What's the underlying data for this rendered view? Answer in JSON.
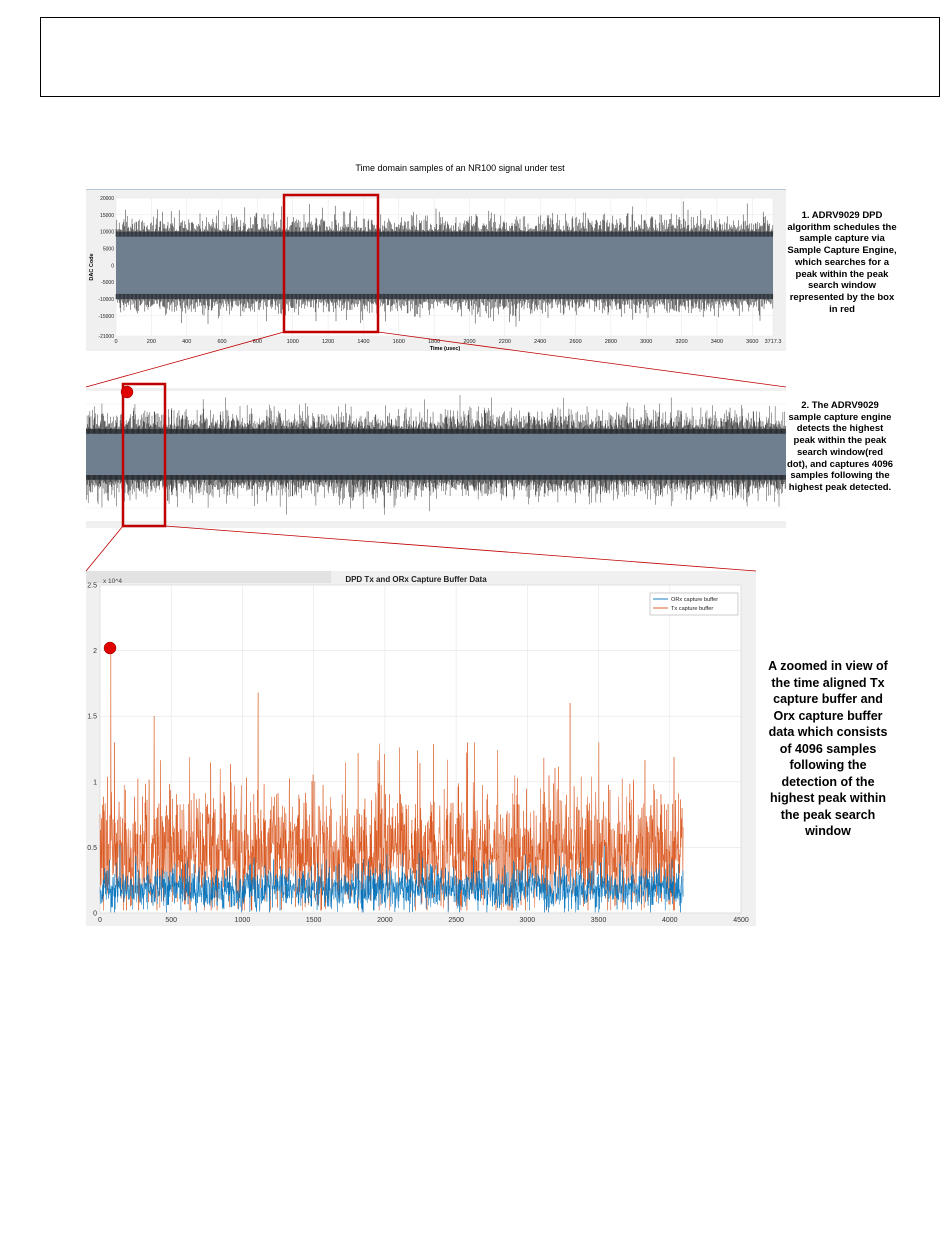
{
  "figure_title": "Time domain samples of an NR100 signal under test",
  "notes": {
    "step1": "1. ADRV9029 DPD algorithm schedules the sample capture via Sample Capture Engine, which searches for a peak within the peak search window represented by the box in red",
    "step2": "2. The ADRV9029 sample capture engine detects the highest peak within the peak search window(red dot), and captures 4096 samples following the highest peak detected.",
    "step3": "A zoomed in view of the time aligned Tx capture buffer and Orx capture buffer data which consists of 4096 samples following the detection of the highest peak within the peak search window"
  },
  "colors": {
    "signal_fill": "#707f8f",
    "signal_spikes": "#111111",
    "highlight": "#c00000",
    "orx": "#0072bd",
    "tx": "#d95319",
    "panel_bg": "#f0f0f0"
  },
  "chart_data": [
    {
      "type": "area",
      "xlabel": "Time (usec)",
      "ylabel": "DAC Code",
      "xlim": [
        0,
        3717.3
      ],
      "ylim": [
        -21000,
        20000
      ],
      "x_ticks": [
        "0",
        "200",
        "400",
        "600",
        "800",
        "1000",
        "1200",
        "1400",
        "1600",
        "1800",
        "2000",
        "2200",
        "2400",
        "2600",
        "2800",
        "3000",
        "3200",
        "3400",
        "3600",
        "3717.3"
      ],
      "y_ticks": [
        "20000",
        "15000",
        "10000",
        "5000",
        "0",
        "-5000",
        "-10000",
        "-15000",
        "-21000"
      ],
      "envelope": {
        "rms_fill": [
          -10000,
          10000
        ],
        "typical_peak": 15000,
        "max_peak": 19000
      },
      "peak_search_window": [
        940,
        1480
      ],
      "grid": true
    },
    {
      "type": "area",
      "title": "",
      "xlim": [
        940,
        1480
      ],
      "envelope": {
        "rms_fill": [
          -10000,
          10000
        ],
        "typical_peak": 15000,
        "max_peak": 19000
      },
      "highest_peak_marker": {
        "x": 963,
        "y": 19000
      },
      "capture_window": [
        960,
        1000
      ]
    },
    {
      "type": "line",
      "title": "DPD Tx and ORx Capture Buffer Data",
      "y_exponent": "x 10^4",
      "xlim": [
        0,
        4500
      ],
      "ylim": [
        0,
        2.5
      ],
      "x_ticks": [
        "0",
        "500",
        "1000",
        "1500",
        "2000",
        "2500",
        "3000",
        "3500",
        "4000",
        "4500"
      ],
      "y_ticks": [
        "0",
        "0.5",
        "1",
        "1.5",
        "2",
        "2.5"
      ],
      "grid": true,
      "legend_position": "top-right",
      "series": [
        {
          "name": "ORx capture buffer",
          "color": "#0072bd",
          "length": 4096,
          "typical_range": [
            0.0,
            0.4
          ],
          "max": 0.55
        },
        {
          "name": "Tx capture buffer",
          "color": "#d95319",
          "length": 4096,
          "typical_range": [
            0.1,
            1.2
          ],
          "max": 2.03
        }
      ],
      "peaks": [
        {
          "series": "Tx capture buffer",
          "x": 75,
          "y": 2.03
        },
        {
          "series": "Tx capture buffer",
          "x": 1110,
          "y": 1.68
        },
        {
          "series": "Tx capture buffer",
          "x": 3300,
          "y": 1.6
        },
        {
          "series": "Tx capture buffer",
          "x": 380,
          "y": 1.5
        }
      ],
      "highest_peak_marker": {
        "x": 75,
        "y": 2.03
      }
    }
  ]
}
